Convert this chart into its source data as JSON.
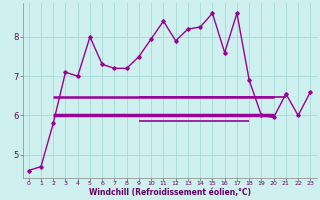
{
  "xlabel": "Windchill (Refroidissement éolien,°C)",
  "x_ticks": [
    0,
    1,
    2,
    3,
    4,
    5,
    6,
    7,
    8,
    9,
    10,
    11,
    12,
    13,
    14,
    15,
    16,
    17,
    18,
    19,
    20,
    21,
    22,
    23
  ],
  "ylim": [
    4.4,
    8.85
  ],
  "yticks": [
    5,
    6,
    7,
    8
  ],
  "background_color": "#cef0ee",
  "grid_color": "#aaddda",
  "line_color": "#990099",
  "main_series_x": [
    0,
    1,
    2,
    3,
    4,
    5,
    6,
    7,
    8,
    9,
    10,
    11,
    12,
    13,
    14,
    15,
    16,
    17,
    18,
    19,
    20,
    21,
    22,
    23
  ],
  "main_series_y": [
    4.6,
    4.7,
    5.8,
    7.1,
    7.0,
    8.0,
    7.3,
    7.2,
    7.2,
    7.5,
    7.95,
    8.4,
    7.9,
    8.2,
    8.25,
    8.6,
    7.6,
    8.6,
    6.9,
    6.0,
    5.95,
    6.55,
    6.0,
    6.6
  ],
  "flat_lines": [
    {
      "x_start": 2,
      "x_end": 20,
      "y": 6.47,
      "lw": 1.8
    },
    {
      "x_start": 2,
      "x_end": 20,
      "y": 6.02,
      "lw": 2.5
    },
    {
      "x_start": 9,
      "x_end": 21,
      "y": 6.47,
      "lw": 1.2
    },
    {
      "x_start": 9,
      "x_end": 18,
      "y": 5.87,
      "lw": 1.2
    }
  ]
}
